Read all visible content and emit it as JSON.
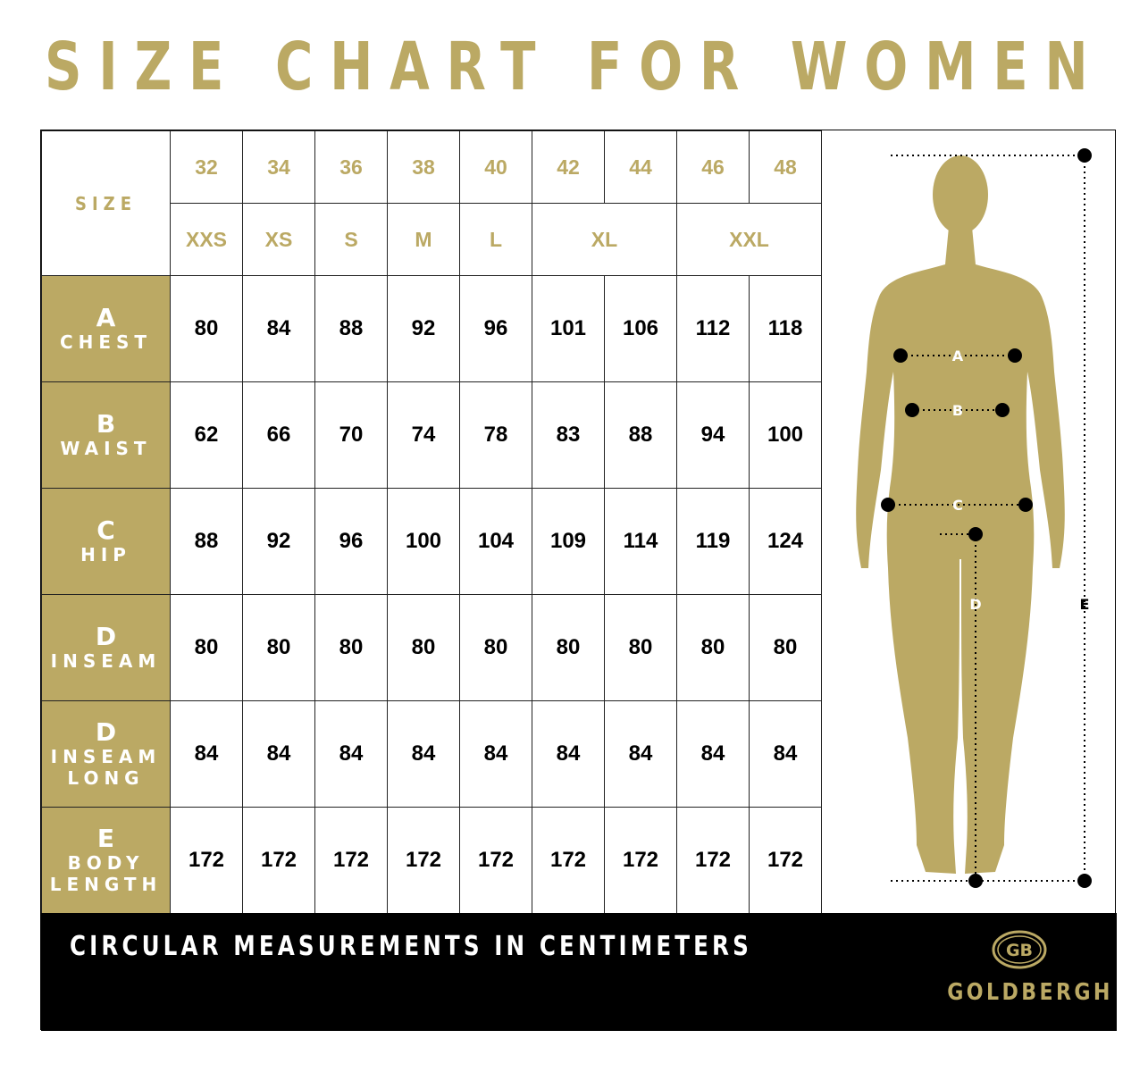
{
  "title": "SIZE CHART FOR WOMEN",
  "size_label": "SIZE",
  "sizes_numeric": [
    "32",
    "34",
    "36",
    "38",
    "40",
    "42",
    "44",
    "46",
    "48"
  ],
  "sizes_letter": [
    {
      "label": "XXS",
      "span": 1
    },
    {
      "label": "XS",
      "span": 1
    },
    {
      "label": "S",
      "span": 1
    },
    {
      "label": "M",
      "span": 1
    },
    {
      "label": "L",
      "span": 1
    },
    {
      "label": "XL",
      "span": 2
    },
    {
      "label": "XXL",
      "span": 2
    }
  ],
  "rows": [
    {
      "letter": "A",
      "words": [
        "CHEST"
      ],
      "values": [
        "80",
        "84",
        "88",
        "92",
        "96",
        "101",
        "106",
        "112",
        "118"
      ]
    },
    {
      "letter": "B",
      "words": [
        "WAIST"
      ],
      "values": [
        "62",
        "66",
        "70",
        "74",
        "78",
        "83",
        "88",
        "94",
        "100"
      ]
    },
    {
      "letter": "C",
      "words": [
        "HIP"
      ],
      "values": [
        "88",
        "92",
        "96",
        "100",
        "104",
        "109",
        "114",
        "119",
        "124"
      ]
    },
    {
      "letter": "D",
      "words": [
        "INSEAM"
      ],
      "values": [
        "80",
        "80",
        "80",
        "80",
        "80",
        "80",
        "80",
        "80",
        "80"
      ]
    },
    {
      "letter": "D",
      "words": [
        "INSEAM",
        "LONG"
      ],
      "values": [
        "84",
        "84",
        "84",
        "84",
        "84",
        "84",
        "84",
        "84",
        "84"
      ]
    },
    {
      "letter": "E",
      "words": [
        "BODY",
        "LENGTH"
      ],
      "values": [
        "172",
        "172",
        "172",
        "172",
        "172",
        "172",
        "172",
        "172",
        "172"
      ]
    }
  ],
  "figure_labels": {
    "a": "A",
    "b": "B",
    "c": "C",
    "d": "D",
    "e": "E"
  },
  "footer": {
    "text": "CIRCULAR MEASUREMENTS IN CENTIMETERS",
    "brand": "GOLDBERGH",
    "logo_mark": "GB"
  },
  "colors": {
    "gold": "#BBA964",
    "black": "#000000",
    "white": "#FFFFFF"
  }
}
